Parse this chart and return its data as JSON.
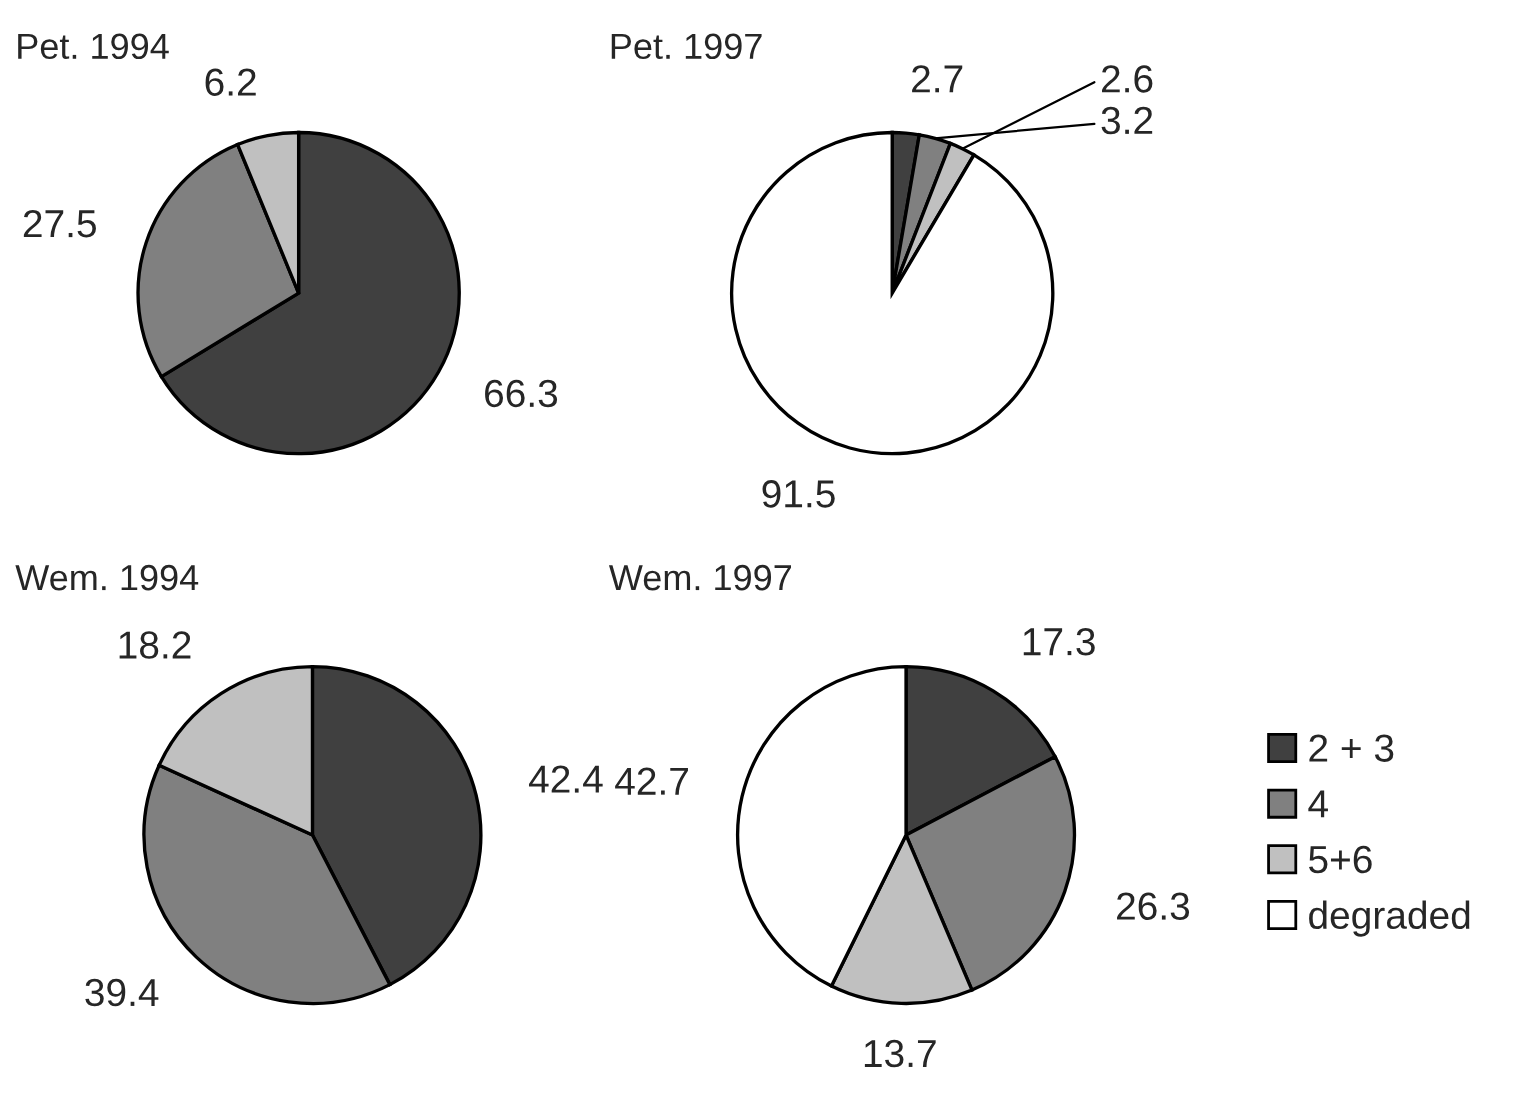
{
  "chart_data": [
    {
      "type": "pie",
      "title": "Pet. 1994",
      "categories": [
        null,
        null,
        null,
        null
      ],
      "values": [
        66.3,
        27.5,
        6.2,
        null
      ],
      "colors": [
        "#404040",
        "#808080",
        "#c0c0c0",
        "#ffffff"
      ],
      "data_labels": true
    },
    {
      "type": "pie",
      "title": "Pet. 1997",
      "categories": [
        null,
        null,
        null,
        null
      ],
      "values": [
        2.7,
        3.2,
        2.6,
        91.5
      ],
      "colors": [
        "#404040",
        "#808080",
        "#c0c0c0",
        "#ffffff"
      ],
      "data_labels": true
    },
    {
      "type": "pie",
      "title": "Wem. 1994",
      "categories": [
        null,
        null,
        null,
        null
      ],
      "values": [
        42.4,
        39.4,
        18.2,
        null
      ],
      "colors": [
        "#404040",
        "#808080",
        "#c0c0c0",
        "#ffffff"
      ],
      "data_labels": true
    },
    {
      "type": "pie",
      "title": "Wem. 1997",
      "categories": [
        "2 + 3",
        "4",
        "5+6",
        "degraded"
      ],
      "values": [
        17.3,
        26.3,
        13.7,
        42.7
      ],
      "colors": [
        "#404040",
        "#808080",
        "#c0c0c0",
        "#ffffff"
      ],
      "data_labels": true,
      "legend": "right"
    }
  ]
}
